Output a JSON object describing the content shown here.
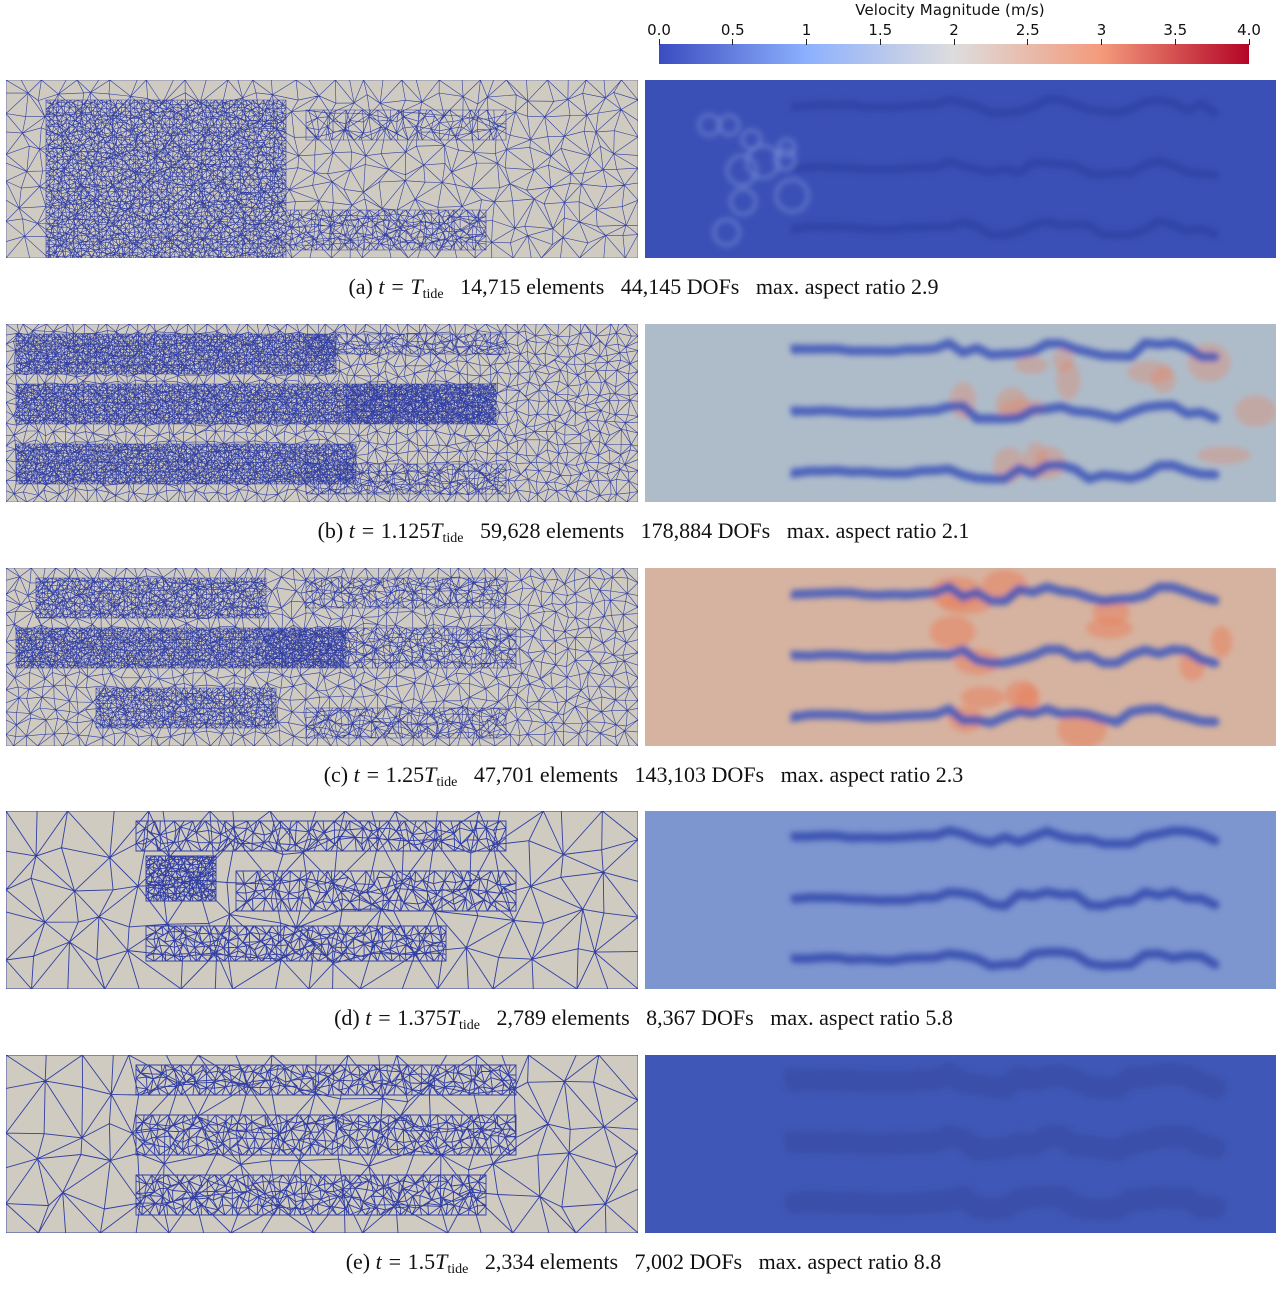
{
  "colorbar": {
    "title": "Velocity Magnitude (m/s)",
    "ticks": [
      "0.0",
      "0.5",
      "1",
      "1.5",
      "2",
      "2.5",
      "3",
      "3.5",
      "4.0"
    ],
    "tick_values": [
      0.0,
      0.5,
      1,
      1.5,
      2,
      2.5,
      3,
      3.5,
      4.0
    ],
    "range": [
      0.0,
      4.0
    ],
    "colors": [
      "#3b4cc0",
      "#8db0fe",
      "#dddddd",
      "#f49a7b",
      "#b40426"
    ]
  },
  "panels": [
    {
      "label": "(a)",
      "time_prefix": "t = ",
      "time_factor": "",
      "time_symbol": "T",
      "time_sub": "tide",
      "elements": "14,715 elements",
      "dofs": "44,145 DOFs",
      "aspect": "max. aspect ratio 2.9",
      "background_color": "#3b50b6",
      "streak_color": "#2f43a6"
    },
    {
      "label": "(b)",
      "time_prefix": "t = ",
      "time_factor": "1.125",
      "time_symbol": "T",
      "time_sub": "tide",
      "elements": "59,628 elements",
      "dofs": "178,884 DOFs",
      "aspect": "max. aspect ratio 2.1",
      "background_color": "#aebcca",
      "streak_color": "#3a52b8"
    },
    {
      "label": "(c)",
      "time_prefix": "t = ",
      "time_factor": "1.25",
      "time_symbol": "T",
      "time_sub": "tide",
      "elements": "47,701 elements",
      "dofs": "143,103 DOFs",
      "aspect": "max. aspect ratio 2.3",
      "background_color": "#d6b3a0",
      "streak_color": "#3c55bd"
    },
    {
      "label": "(d)",
      "time_prefix": "t = ",
      "time_factor": "1.375",
      "time_symbol": "T",
      "time_sub": "tide",
      "elements": "2,789 elements",
      "dofs": "8,367 DOFs",
      "aspect": "max. aspect ratio 5.8",
      "background_color": "#7d96d0",
      "streak_color": "#3349ad"
    },
    {
      "label": "(e)",
      "time_prefix": "t = ",
      "time_factor": "1.5",
      "time_symbol": "T",
      "time_sub": "tide",
      "elements": "2,334 elements",
      "dofs": "7,002 DOFs",
      "aspect": "max. aspect ratio 8.8",
      "background_color": "#3f57b6",
      "streak_color": "#34499f"
    }
  ]
}
